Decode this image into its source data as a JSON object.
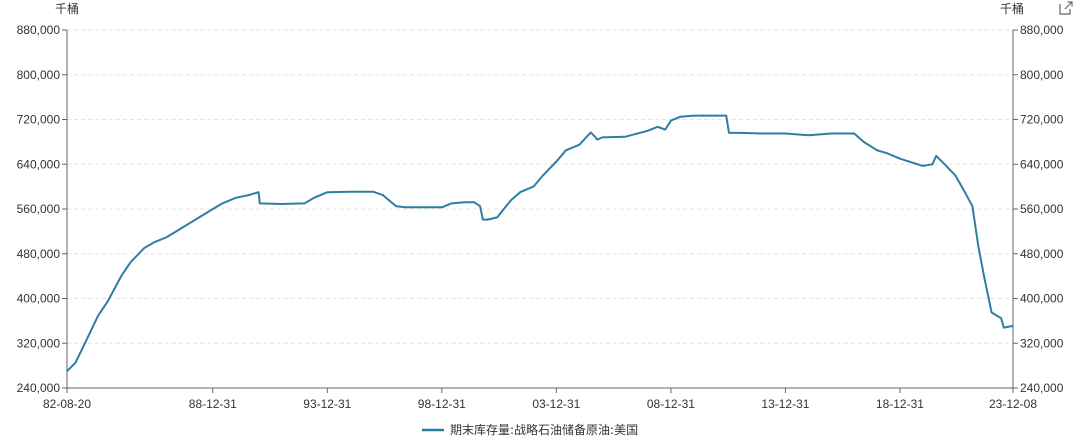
{
  "chart_data": {
    "type": "line",
    "y_unit_left": "千桶",
    "y_unit_right": "千桶",
    "ylim": [
      240000,
      880000
    ],
    "y_ticks": [
      240000,
      320000,
      400000,
      480000,
      560000,
      640000,
      720000,
      800000,
      880000
    ],
    "y_tick_labels": [
      "240,000",
      "320,000",
      "400,000",
      "480,000",
      "560,000",
      "640,000",
      "720,000",
      "800,000",
      "880,000"
    ],
    "x_tick_labels": [
      "82-08-20",
      "88-12-31",
      "93-12-31",
      "98-12-31",
      "03-12-31",
      "08-12-31",
      "13-12-31",
      "18-12-31",
      "23-12-08"
    ],
    "x_tick_dates": [
      "1982-08-20",
      "1988-12-31",
      "1993-12-31",
      "1998-12-31",
      "2003-12-31",
      "2008-12-31",
      "2013-12-31",
      "2018-12-31",
      "2023-12-08"
    ],
    "legend_placement": "bottom-center",
    "grid": true,
    "series": [
      {
        "name": "期末库存量:战略石油储备原油:美国",
        "color": "#2e7ea3",
        "x": [
          "1982-08-20",
          "1983-01-01",
          "1983-06-01",
          "1984-01-01",
          "1984-06-01",
          "1985-01-01",
          "1985-06-01",
          "1986-01-01",
          "1986-06-01",
          "1987-01-01",
          "1988-01-01",
          "1989-01-01",
          "1989-06-01",
          "1990-01-01",
          "1990-08-01",
          "1991-01-01",
          "1991-01-20",
          "1992-01-01",
          "1993-01-01",
          "1993-06-01",
          "1994-01-01",
          "1995-01-01",
          "1996-01-01",
          "1996-06-01",
          "1997-01-01",
          "1997-06-01",
          "1998-01-01",
          "1999-01-01",
          "1999-06-01",
          "2000-01-01",
          "2000-06-01",
          "2000-09-01",
          "2000-10-15",
          "2001-01-01",
          "2001-06-01",
          "2002-01-01",
          "2002-06-01",
          "2003-01-01",
          "2003-06-01",
          "2004-01-01",
          "2004-06-01",
          "2005-01-01",
          "2005-07-01",
          "2005-09-01",
          "2005-10-15",
          "2006-01-01",
          "2007-01-01",
          "2008-01-01",
          "2008-06-01",
          "2008-10-01",
          "2009-01-01",
          "2009-06-01",
          "2010-01-01",
          "2011-01-01",
          "2011-06-01",
          "2011-07-15",
          "2012-01-01",
          "2013-01-01",
          "2014-01-01",
          "2015-01-01",
          "2016-01-01",
          "2017-01-01",
          "2017-06-01",
          "2018-01-01",
          "2018-06-01",
          "2019-01-01",
          "2020-01-01",
          "2020-06-01",
          "2020-08-01",
          "2021-01-01",
          "2021-06-01",
          "2021-11-01",
          "2022-03-01",
          "2022-06-01",
          "2022-09-01",
          "2023-01-01",
          "2023-06-01",
          "2023-07-15",
          "2023-12-08"
        ],
        "y": [
          270000,
          285000,
          320000,
          370000,
          395000,
          440000,
          465000,
          490000,
          500000,
          510000,
          535000,
          560000,
          570000,
          580000,
          585000,
          590000,
          570000,
          569000,
          570000,
          580000,
          590000,
          591000,
          591000,
          585000,
          565000,
          563000,
          563000,
          563000,
          570000,
          572000,
          572000,
          565000,
          541000,
          541000,
          545000,
          575000,
          590000,
          600000,
          620000,
          645000,
          665000,
          675000,
          697000,
          690000,
          684000,
          688000,
          689000,
          700000,
          707000,
          702000,
          718000,
          725000,
          727000,
          727000,
          727000,
          696000,
          696000,
          695000,
          695000,
          692000,
          695000,
          695000,
          680000,
          665000,
          660000,
          650000,
          637000,
          640000,
          655000,
          638000,
          620000,
          590000,
          565000,
          495000,
          440000,
          375000,
          365000,
          348000,
          351000
        ]
      }
    ]
  }
}
